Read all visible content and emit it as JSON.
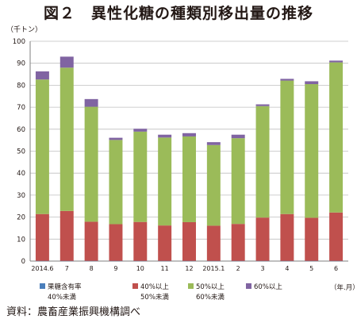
{
  "title": "図２　異性化糖の種類別移出量の推移",
  "source": "資料：農畜産業振興機構調べ",
  "chart_data": {
    "type": "bar",
    "stacked": true,
    "unit_label": "（千トン）",
    "xlabel": "（年.月）",
    "ylabel": "",
    "ylim": [
      0,
      100
    ],
    "yticks": [
      0,
      10,
      20,
      30,
      40,
      50,
      60,
      70,
      80,
      90,
      100
    ],
    "grid": true,
    "legend_position": "bottom",
    "categories": [
      "2014.6",
      "7",
      "8",
      "9",
      "10",
      "11",
      "12",
      "2015.1",
      "2",
      "3",
      "4",
      "5",
      "6"
    ],
    "series": [
      {
        "name": "果糖含有率 40%未満",
        "legend_line1": "果糖含有率",
        "legend_line2": "40%未満",
        "color": "#4a7ebb",
        "values": [
          0.1,
          0.1,
          0.1,
          0.1,
          0.1,
          0.1,
          0.1,
          0.1,
          0.1,
          0.1,
          0.1,
          0.1,
          0.1
        ]
      },
      {
        "name": "40%以上 50%未満",
        "legend_line1": "40%以上",
        "legend_line2": "50%未満",
        "color": "#c0504d",
        "values": [
          21.3,
          22.7,
          17.8,
          16.7,
          17.7,
          16.1,
          17.6,
          16.0,
          16.8,
          19.7,
          21.3,
          19.6,
          22.0
        ]
      },
      {
        "name": "50%以上 60%未満",
        "legend_line1": "50%以上",
        "legend_line2": "60%未満",
        "color": "#9bbb59",
        "values": [
          61.2,
          65.2,
          52.3,
          38.3,
          41.1,
          40.0,
          39.0,
          36.7,
          39.0,
          50.7,
          60.7,
          60.8,
          68.3
        ]
      },
      {
        "name": "60%以上",
        "legend_line1": "60%以上",
        "legend_line2": "",
        "color": "#8064a2",
        "values": [
          3.7,
          5.0,
          3.5,
          1.0,
          1.3,
          1.3,
          1.5,
          1.3,
          1.6,
          0.8,
          0.8,
          1.3,
          0.8
        ]
      }
    ]
  }
}
